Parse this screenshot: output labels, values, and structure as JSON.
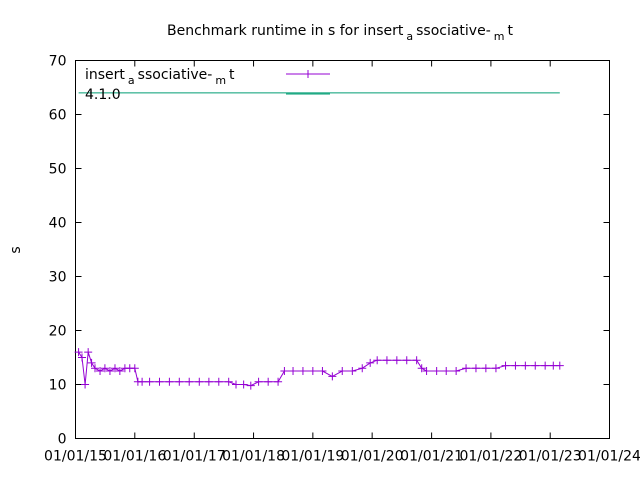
{
  "chart_data": {
    "type": "line",
    "title": "Benchmark runtime in s for insert_associative-_mt",
    "title_parts": {
      "a": "Benchmark runtime in s for insert",
      "sub1": "a",
      "b": "ssociative-",
      "sub2": "m",
      "c": "t"
    },
    "ylabel": "s",
    "xlabel": "",
    "ylim": [
      0,
      70
    ],
    "yticks": [
      "0",
      "10",
      "20",
      "30",
      "40",
      "50",
      "60",
      "70"
    ],
    "xlim": [
      "2015-01-01",
      "2024-01-01"
    ],
    "xticks": [
      "01/01/15",
      "01/01/16",
      "01/01/17",
      "01/01/18",
      "01/01/19",
      "01/01/20",
      "01/01/21",
      "01/01/22",
      "01/01/23",
      "01/01/24"
    ],
    "legend_position": "top-left",
    "grid": false,
    "series": [
      {
        "name": "insert_associative-_mt",
        "name_parts": {
          "a": "insert",
          "sub1": "a",
          "b": "ssociative-",
          "sub2": "m",
          "c": "t"
        },
        "color": "#9400d3",
        "marker": "plus",
        "values": [
          [
            "2015-01-20",
            16
          ],
          [
            "2015-02-10",
            15
          ],
          [
            "2015-03-01",
            10
          ],
          [
            "2015-03-20",
            16
          ],
          [
            "2015-04-10",
            14
          ],
          [
            "2015-05-01",
            13
          ],
          [
            "2015-06-01",
            12.5
          ],
          [
            "2015-07-01",
            13
          ],
          [
            "2015-08-01",
            12.5
          ],
          [
            "2015-09-01",
            13
          ],
          [
            "2015-10-01",
            12.5
          ],
          [
            "2015-11-01",
            13
          ],
          [
            "2015-12-01",
            13
          ],
          [
            "2016-01-01",
            13
          ],
          [
            "2016-01-20",
            10.5
          ],
          [
            "2016-02-15",
            10.5
          ],
          [
            "2016-04-01",
            10.5
          ],
          [
            "2016-06-01",
            10.5
          ],
          [
            "2016-08-01",
            10.5
          ],
          [
            "2016-10-01",
            10.5
          ],
          [
            "2016-12-01",
            10.5
          ],
          [
            "2017-02-01",
            10.5
          ],
          [
            "2017-04-01",
            10.5
          ],
          [
            "2017-06-01",
            10.5
          ],
          [
            "2017-08-01",
            10.5
          ],
          [
            "2017-09-15",
            10
          ],
          [
            "2017-11-01",
            10
          ],
          [
            "2017-12-15",
            9.8
          ],
          [
            "2018-02-01",
            10.5
          ],
          [
            "2018-04-01",
            10.5
          ],
          [
            "2018-06-01",
            10.5
          ],
          [
            "2018-07-10",
            12.5
          ],
          [
            "2018-09-01",
            12.5
          ],
          [
            "2018-11-01",
            12.5
          ],
          [
            "2019-01-01",
            12.5
          ],
          [
            "2019-03-01",
            12.5
          ],
          [
            "2019-05-01",
            11.5
          ],
          [
            "2019-07-01",
            12.5
          ],
          [
            "2019-09-01",
            12.5
          ],
          [
            "2019-11-01",
            13
          ],
          [
            "2019-12-20",
            14
          ],
          [
            "2020-02-01",
            14.5
          ],
          [
            "2020-04-01",
            14.5
          ],
          [
            "2020-06-01",
            14.5
          ],
          [
            "2020-08-01",
            14.5
          ],
          [
            "2020-10-01",
            14.5
          ],
          [
            "2020-11-01",
            13
          ],
          [
            "2020-12-01",
            12.5
          ],
          [
            "2021-02-01",
            12.5
          ],
          [
            "2021-04-01",
            12.5
          ],
          [
            "2021-06-01",
            12.5
          ],
          [
            "2021-08-01",
            13
          ],
          [
            "2021-10-01",
            13
          ],
          [
            "2021-12-01",
            13
          ],
          [
            "2022-02-01",
            13
          ],
          [
            "2022-04-01",
            13.5
          ],
          [
            "2022-06-01",
            13.5
          ],
          [
            "2022-08-01",
            13.5
          ],
          [
            "2022-10-01",
            13.5
          ],
          [
            "2022-12-01",
            13.5
          ],
          [
            "2023-01-20",
            13.5
          ],
          [
            "2023-03-01",
            13.5
          ]
        ]
      },
      {
        "name": "4.1.0",
        "color": "#009e73",
        "marker": "none",
        "values": [
          [
            "2015-01-20",
            64
          ],
          [
            "2023-03-01",
            64
          ]
        ]
      }
    ]
  }
}
